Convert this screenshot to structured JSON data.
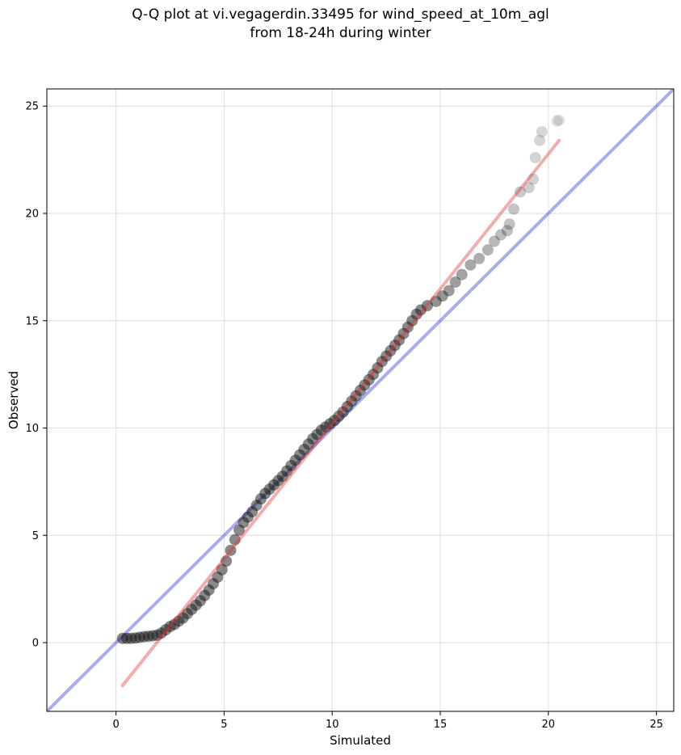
{
  "chart_data": {
    "type": "scatter",
    "title": "Q-Q plot at vi.vegagerdin.33495 for wind_speed_at_10m_agl",
    "subtitle": "from 18-24h during winter",
    "xlabel": "Simulated",
    "ylabel": "Observed",
    "xlim": [
      -3.2,
      25.8
    ],
    "ylim": [
      -3.2,
      25.8
    ],
    "x_ticks": [
      "0",
      "5",
      "10",
      "15",
      "20",
      "25"
    ],
    "y_ticks": [
      "0",
      "5",
      "10",
      "15",
      "20",
      "25"
    ],
    "grid": true,
    "legend": "none",
    "reference_line": {
      "name": "",
      "x": [
        -3.2,
        25.8
      ],
      "y": [
        -3.2,
        25.8
      ],
      "color": "#0000dd"
    },
    "fit_line": {
      "name": "",
      "x": [
        0.3,
        20.5
      ],
      "y": [
        -2.0,
        23.4
      ],
      "color": "#e83030"
    },
    "quantiles": [
      {
        "x": 0.3,
        "y": 0.2
      },
      {
        "x": 0.5,
        "y": 0.2
      },
      {
        "x": 0.7,
        "y": 0.2
      },
      {
        "x": 0.9,
        "y": 0.22
      },
      {
        "x": 1.1,
        "y": 0.25
      },
      {
        "x": 1.3,
        "y": 0.28
      },
      {
        "x": 1.5,
        "y": 0.3
      },
      {
        "x": 1.7,
        "y": 0.32
      },
      {
        "x": 1.9,
        "y": 0.35
      },
      {
        "x": 2.1,
        "y": 0.45
      },
      {
        "x": 2.3,
        "y": 0.6
      },
      {
        "x": 2.5,
        "y": 0.75
      },
      {
        "x": 2.7,
        "y": 0.85
      },
      {
        "x": 2.9,
        "y": 1.0
      },
      {
        "x": 3.1,
        "y": 1.15
      },
      {
        "x": 3.3,
        "y": 1.35
      },
      {
        "x": 3.5,
        "y": 1.55
      },
      {
        "x": 3.7,
        "y": 1.75
      },
      {
        "x": 3.9,
        "y": 1.95
      },
      {
        "x": 4.1,
        "y": 2.2
      },
      {
        "x": 4.3,
        "y": 2.45
      },
      {
        "x": 4.5,
        "y": 2.75
      },
      {
        "x": 4.7,
        "y": 3.05
      },
      {
        "x": 4.9,
        "y": 3.4
      },
      {
        "x": 5.1,
        "y": 3.8
      },
      {
        "x": 5.3,
        "y": 4.3
      },
      {
        "x": 5.5,
        "y": 4.8
      },
      {
        "x": 5.7,
        "y": 5.25
      },
      {
        "x": 5.9,
        "y": 5.6
      },
      {
        "x": 6.1,
        "y": 5.85
      },
      {
        "x": 6.3,
        "y": 6.1
      },
      {
        "x": 6.5,
        "y": 6.4
      },
      {
        "x": 6.7,
        "y": 6.7
      },
      {
        "x": 6.9,
        "y": 6.95
      },
      {
        "x": 7.1,
        "y": 7.15
      },
      {
        "x": 7.3,
        "y": 7.35
      },
      {
        "x": 7.5,
        "y": 7.55
      },
      {
        "x": 7.7,
        "y": 7.75
      },
      {
        "x": 7.9,
        "y": 8.0
      },
      {
        "x": 8.1,
        "y": 8.25
      },
      {
        "x": 8.3,
        "y": 8.5
      },
      {
        "x": 8.5,
        "y": 8.75
      },
      {
        "x": 8.7,
        "y": 9.0
      },
      {
        "x": 8.9,
        "y": 9.25
      },
      {
        "x": 9.1,
        "y": 9.5
      },
      {
        "x": 9.3,
        "y": 9.7
      },
      {
        "x": 9.5,
        "y": 9.9
      },
      {
        "x": 9.7,
        "y": 10.05
      },
      {
        "x": 9.9,
        "y": 10.2
      },
      {
        "x": 10.1,
        "y": 10.35
      },
      {
        "x": 10.3,
        "y": 10.55
      },
      {
        "x": 10.5,
        "y": 10.75
      },
      {
        "x": 10.7,
        "y": 11.0
      },
      {
        "x": 10.9,
        "y": 11.25
      },
      {
        "x": 11.1,
        "y": 11.5
      },
      {
        "x": 11.3,
        "y": 11.75
      },
      {
        "x": 11.5,
        "y": 12.0
      },
      {
        "x": 11.7,
        "y": 12.25
      },
      {
        "x": 11.9,
        "y": 12.5
      },
      {
        "x": 12.1,
        "y": 12.8
      },
      {
        "x": 12.3,
        "y": 13.1
      },
      {
        "x": 12.5,
        "y": 13.35
      },
      {
        "x": 12.7,
        "y": 13.6
      },
      {
        "x": 12.9,
        "y": 13.85
      },
      {
        "x": 13.1,
        "y": 14.1
      },
      {
        "x": 13.3,
        "y": 14.4
      },
      {
        "x": 13.5,
        "y": 14.7
      },
      {
        "x": 13.7,
        "y": 15.0
      },
      {
        "x": 13.9,
        "y": 15.3
      },
      {
        "x": 14.1,
        "y": 15.5
      },
      {
        "x": 14.4,
        "y": 15.7
      },
      {
        "x": 14.8,
        "y": 15.9
      },
      {
        "x": 15.1,
        "y": 16.15
      },
      {
        "x": 15.4,
        "y": 16.4
      },
      {
        "x": 15.7,
        "y": 16.8
      },
      {
        "x": 16.0,
        "y": 17.15
      },
      {
        "x": 16.4,
        "y": 17.6
      },
      {
        "x": 16.8,
        "y": 17.9
      },
      {
        "x": 17.2,
        "y": 18.3
      },
      {
        "x": 17.5,
        "y": 18.7
      },
      {
        "x": 17.8,
        "y": 19.0
      },
      {
        "x": 18.1,
        "y": 19.2
      },
      {
        "x": 18.2,
        "y": 19.5
      },
      {
        "x": 18.4,
        "y": 20.2
      },
      {
        "x": 18.7,
        "y": 21.0
      },
      {
        "x": 19.1,
        "y": 21.2
      },
      {
        "x": 19.3,
        "y": 21.6
      },
      {
        "x": 19.4,
        "y": 22.6
      },
      {
        "x": 19.6,
        "y": 23.4
      },
      {
        "x": 19.7,
        "y": 23.8
      },
      {
        "x": 20.4,
        "y": 24.3
      },
      {
        "x": 20.5,
        "y": 24.35
      }
    ]
  }
}
